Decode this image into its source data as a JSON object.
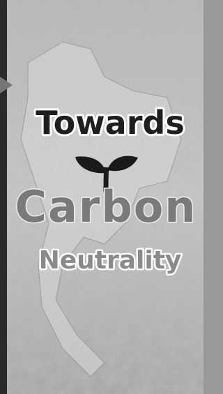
{
  "poster": {
    "lines": [
      "Towards",
      "Carbon",
      "Neutrality"
    ]
  }
}
